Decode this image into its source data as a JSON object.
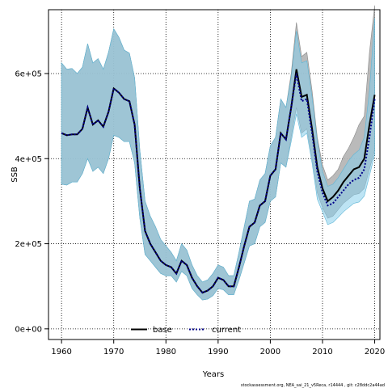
{
  "chart_data": {
    "type": "area",
    "xlabel": "Years",
    "ylabel": "SSB",
    "xlim": [
      1957.5,
      2021
    ],
    "ylim": [
      -25000,
      750000
    ],
    "x_ticks": [
      1960,
      1970,
      1980,
      1990,
      2000,
      2010,
      2020
    ],
    "y_ticks": [
      0,
      200000,
      400000,
      600000
    ],
    "y_tick_labels": [
      "0e+00",
      "2e+05",
      "4e+05",
      "6e+05"
    ],
    "grid": true,
    "legend_position": "bottom-center",
    "footnote": "stockassessment.org, NEA_sai_21_v5Reca, r14444 , git: c28ddc2a44ad",
    "colors": {
      "base_band": "#b3b3b3",
      "base_line": "#000000",
      "current_band": "#87ceeb",
      "current_line": "#00008b",
      "overlap_band": "#a3c2d3"
    },
    "years": [
      1960,
      1961,
      1962,
      1963,
      1964,
      1965,
      1966,
      1967,
      1968,
      1969,
      1970,
      1971,
      1972,
      1973,
      1974,
      1975,
      1976,
      1977,
      1978,
      1979,
      1980,
      1981,
      1982,
      1983,
      1984,
      1985,
      1986,
      1987,
      1988,
      1989,
      1990,
      1991,
      1992,
      1993,
      1994,
      1995,
      1996,
      1997,
      1998,
      1999,
      2000,
      2001,
      2002,
      2003,
      2004,
      2005,
      2006,
      2007,
      2008,
      2009,
      2010,
      2011,
      2012,
      2013,
      2014,
      2015,
      2016,
      2017,
      2018,
      2019,
      2020
    ],
    "series": [
      {
        "name": "base",
        "values": [
          460000,
          455000,
          457000,
          457000,
          470000,
          520000,
          480000,
          490000,
          475000,
          510000,
          565000,
          555000,
          540000,
          535000,
          480000,
          330000,
          230000,
          200000,
          180000,
          160000,
          150000,
          145000,
          130000,
          160000,
          150000,
          120000,
          100000,
          85000,
          90000,
          100000,
          120000,
          115000,
          100000,
          100000,
          145000,
          195000,
          240000,
          250000,
          290000,
          300000,
          360000,
          375000,
          460000,
          445000,
          520000,
          610000,
          545000,
          550000,
          470000,
          380000,
          330000,
          300000,
          310000,
          325000,
          345000,
          360000,
          375000,
          380000,
          400000,
          480000,
          550000
        ],
        "lower": [
          340000,
          338000,
          345000,
          345000,
          365000,
          400000,
          370000,
          380000,
          365000,
          400000,
          455000,
          450000,
          440000,
          440000,
          390000,
          260000,
          175000,
          160000,
          145000,
          130000,
          125000,
          125000,
          110000,
          135000,
          125000,
          95000,
          80000,
          68000,
          70000,
          78000,
          95000,
          92000,
          80000,
          80000,
          115000,
          155000,
          195000,
          200000,
          240000,
          250000,
          300000,
          310000,
          390000,
          380000,
          450000,
          520000,
          460000,
          470000,
          400000,
          320000,
          285000,
          260000,
          265000,
          280000,
          295000,
          305000,
          315000,
          318000,
          330000,
          375000,
          420000
        ],
        "upper": [
          625000,
          610000,
          612000,
          600000,
          615000,
          670000,
          625000,
          635000,
          610000,
          650000,
          705000,
          685000,
          655000,
          648000,
          590000,
          420000,
          300000,
          265000,
          240000,
          210000,
          195000,
          180000,
          160000,
          200000,
          185000,
          150000,
          125000,
          110000,
          115000,
          130000,
          150000,
          145000,
          125000,
          125000,
          180000,
          240000,
          300000,
          305000,
          350000,
          365000,
          430000,
          450000,
          540000,
          520000,
          600000,
          720000,
          640000,
          650000,
          560000,
          450000,
          385000,
          350000,
          360000,
          375000,
          405000,
          425000,
          450000,
          480000,
          500000,
          650000,
          760000
        ]
      },
      {
        "name": "current",
        "values": [
          460000,
          455000,
          457000,
          457000,
          470000,
          520000,
          480000,
          490000,
          475000,
          510000,
          565000,
          555000,
          540000,
          535000,
          480000,
          330000,
          230000,
          200000,
          180000,
          160000,
          150000,
          145000,
          130000,
          160000,
          150000,
          120000,
          100000,
          85000,
          90000,
          100000,
          120000,
          115000,
          100000,
          100000,
          145000,
          195000,
          240000,
          250000,
          290000,
          300000,
          360000,
          375000,
          460000,
          445000,
          520000,
          600000,
          535000,
          540000,
          460000,
          370000,
          320000,
          290000,
          295000,
          310000,
          325000,
          340000,
          350000,
          355000,
          375000,
          450000,
          540000
        ],
        "lower": [
          340000,
          338000,
          345000,
          345000,
          365000,
          400000,
          370000,
          380000,
          365000,
          400000,
          455000,
          450000,
          440000,
          440000,
          390000,
          260000,
          175000,
          160000,
          145000,
          130000,
          125000,
          125000,
          110000,
          135000,
          125000,
          95000,
          80000,
          68000,
          70000,
          78000,
          95000,
          92000,
          80000,
          80000,
          115000,
          155000,
          195000,
          200000,
          240000,
          250000,
          300000,
          310000,
          390000,
          380000,
          440000,
          505000,
          450000,
          460000,
          390000,
          305000,
          275000,
          245000,
          250000,
          262000,
          275000,
          285000,
          295000,
          298000,
          312000,
          360000,
          410000
        ],
        "upper": [
          625000,
          610000,
          612000,
          600000,
          615000,
          670000,
          625000,
          635000,
          610000,
          650000,
          705000,
          685000,
          655000,
          648000,
          590000,
          420000,
          300000,
          265000,
          240000,
          210000,
          195000,
          180000,
          160000,
          200000,
          185000,
          150000,
          125000,
          110000,
          115000,
          130000,
          150000,
          145000,
          125000,
          125000,
          180000,
          240000,
          300000,
          305000,
          350000,
          365000,
          430000,
          450000,
          540000,
          520000,
          590000,
          700000,
          625000,
          630000,
          545000,
          440000,
          370000,
          335000,
          340000,
          355000,
          375000,
          395000,
          410000,
          420000,
          450000,
          560000,
          730000
        ]
      }
    ]
  }
}
